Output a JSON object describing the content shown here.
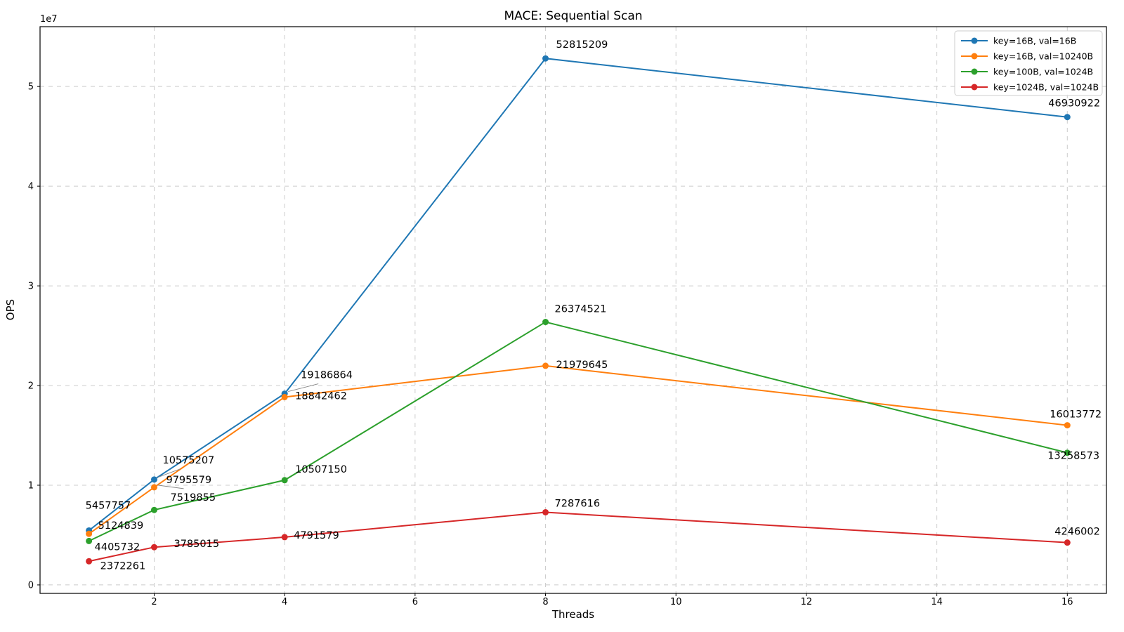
{
  "chart_data": {
    "type": "line",
    "title": "MACE: Sequential Scan",
    "xlabel": "Threads",
    "ylabel": "OPS",
    "y_offset_text": "1e7",
    "x": [
      1,
      2,
      4,
      8,
      16
    ],
    "series": [
      {
        "name": "key=16B, val=16B",
        "color": "#1f77b4",
        "values": [
          5457757,
          10575207,
          19186864,
          52815209,
          46930922
        ]
      },
      {
        "name": "key=16B, val=10240B",
        "color": "#ff7f0e",
        "values": [
          5124839,
          9795579,
          18842462,
          21979645,
          16013772
        ]
      },
      {
        "name": "key=100B, val=1024B",
        "color": "#2ca02c",
        "values": [
          4405732,
          7519855,
          10507150,
          26374521,
          13258573
        ]
      },
      {
        "name": "key=1024B, val=1024B",
        "color": "#d62728",
        "values": [
          2372261,
          3785015,
          4791579,
          7287616,
          4246002
        ]
      }
    ],
    "x_ticks": [
      2,
      4,
      6,
      8,
      10,
      12,
      14,
      16
    ],
    "y_ticks": [
      0,
      10000000,
      20000000,
      30000000,
      40000000,
      50000000
    ],
    "y_tick_labels": [
      "0",
      "1",
      "2",
      "3",
      "4",
      "5"
    ],
    "xlim": [
      0.25,
      16.6
    ],
    "ylim": [
      -850000,
      56000000
    ],
    "grid": true,
    "grid_color": "#cccccc",
    "spine_color": "#000000",
    "leader_color": "#888888",
    "legend_position": "upper right",
    "label_offsets": [
      [
        [
          -5,
          -31
        ],
        [
          12,
          -23
        ],
        [
          23,
          -22
        ],
        [
          15,
          -15
        ],
        [
          -27,
          -15
        ]
      ],
      [
        [
          13,
          -7
        ],
        [
          17,
          -6
        ],
        [
          15,
          3
        ],
        [
          15,
          3
        ],
        [
          -25,
          -11
        ]
      ],
      [
        [
          8,
          13
        ],
        [
          23,
          -13
        ],
        [
          15,
          -11
        ],
        [
          13,
          -14
        ],
        [
          -28,
          9
        ]
      ],
      [
        [
          16,
          11
        ],
        [
          28,
          0
        ],
        [
          13,
          2
        ],
        [
          13,
          -8
        ],
        [
          -18,
          -11
        ]
      ]
    ],
    "leaders": [
      [
        0,
        1
      ],
      [
        0,
        2
      ],
      [
        1,
        1
      ]
    ]
  }
}
